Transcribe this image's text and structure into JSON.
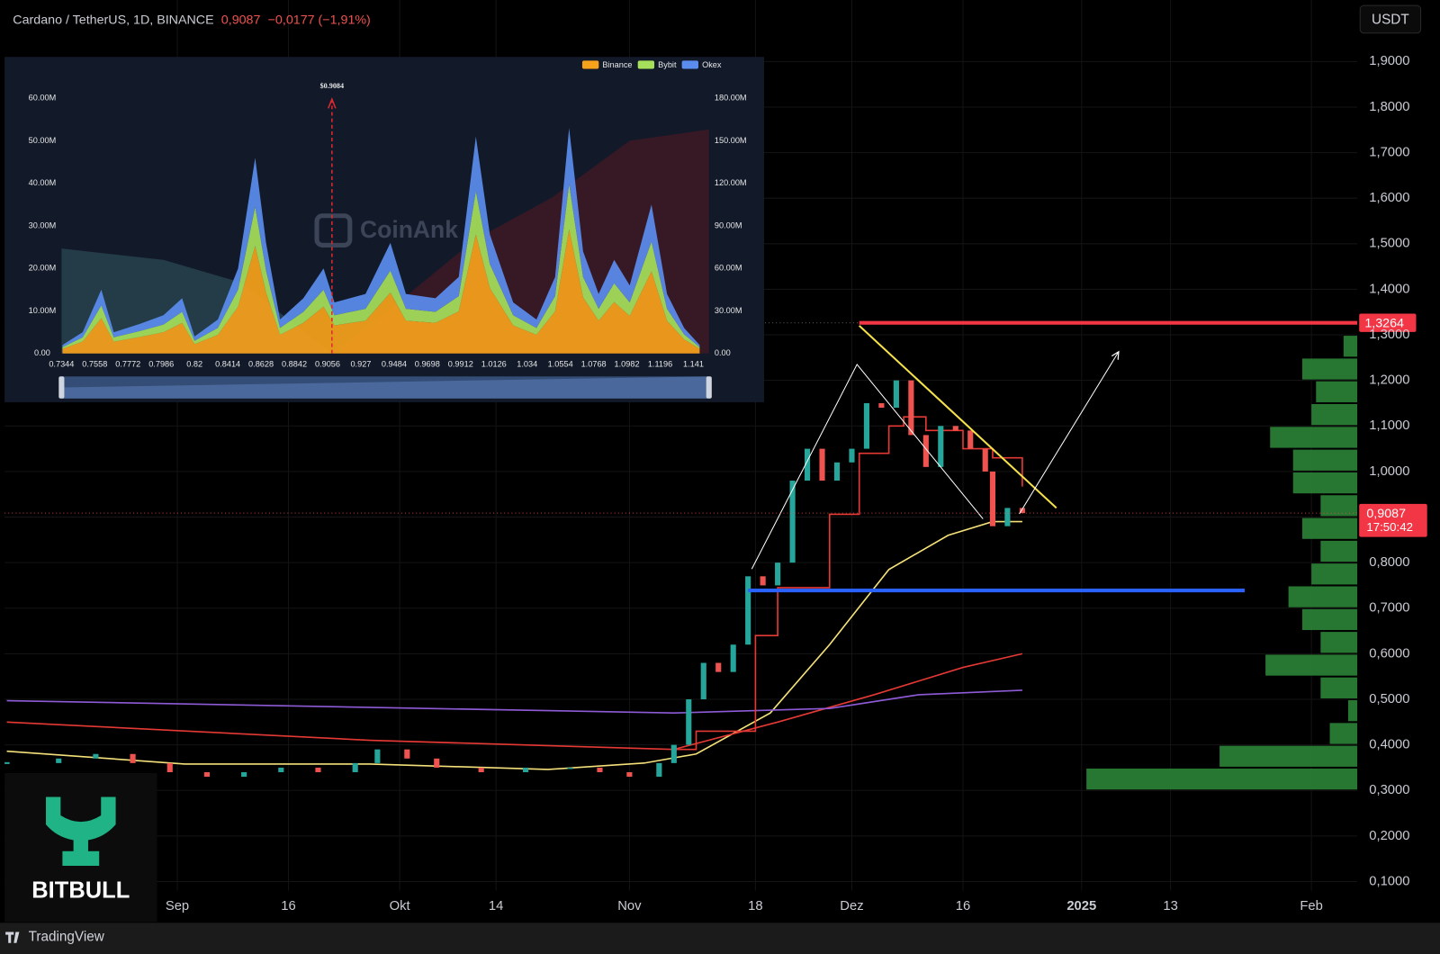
{
  "chart_data": [
    {
      "type": "candlestick",
      "title": "Cardano / TetherUS, 1D, BINANCE",
      "last_price": {
        "value": 0.9087,
        "label": "0,9087"
      },
      "change": "−0,0177 (−1,91%)",
      "countdown": "17:50:42",
      "currency": "USDT",
      "xlim": [
        -22.3,
        160.2
      ],
      "ylim": [
        0.08,
        2.035
      ],
      "xticks": [
        {
          "value": 1,
          "label": "Sep"
        },
        {
          "value": 16,
          "label": "16"
        },
        {
          "value": 31,
          "label": "Okt"
        },
        {
          "value": 44,
          "label": "14"
        },
        {
          "value": 62,
          "label": "Nov"
        },
        {
          "value": 79,
          "label": "18"
        },
        {
          "value": 92,
          "label": "Dez"
        },
        {
          "value": 107,
          "label": "16"
        },
        {
          "value": 123,
          "label": "2025"
        },
        {
          "value": 135,
          "label": "13"
        },
        {
          "value": 154,
          "label": "Feb"
        }
      ],
      "yticks": [
        {
          "value": 0.1,
          "label": "0,1000"
        },
        {
          "value": 0.2,
          "label": "0,2000"
        },
        {
          "value": 0.3,
          "label": "0,3000"
        },
        {
          "value": 0.4,
          "label": "0,4000"
        },
        {
          "value": 0.5,
          "label": "0,5000"
        },
        {
          "value": 0.6,
          "label": "0,6000"
        },
        {
          "value": 0.7,
          "label": "0,7000"
        },
        {
          "value": 0.8,
          "label": "0,8000"
        },
        {
          "value": 0.9,
          "label": "0,9000"
        },
        {
          "value": 1.0,
          "label": "1,0000"
        },
        {
          "value": 1.1,
          "label": "1,1000"
        },
        {
          "value": 1.2,
          "label": "1,2000"
        },
        {
          "value": 1.3,
          "label": "1,3000"
        },
        {
          "value": 1.4,
          "label": "1,4000"
        },
        {
          "value": 1.5,
          "label": "1,5000"
        },
        {
          "value": 1.6,
          "label": "1,6000"
        },
        {
          "value": 1.7,
          "label": "1,7000"
        },
        {
          "value": 1.8,
          "label": "1,8000"
        },
        {
          "value": 1.9,
          "label": "1,9000"
        }
      ],
      "grid": true,
      "up_color": "#26a69a",
      "down_color": "#ef5350",
      "price": {
        "x": [
          -22,
          -15,
          -10,
          -5,
          0,
          5,
          10,
          15,
          20,
          25,
          28,
          32,
          36,
          42,
          48,
          54,
          58,
          62,
          66,
          68,
          70,
          72,
          74,
          76,
          78,
          80,
          82,
          84,
          86,
          88,
          90,
          92,
          94,
          96,
          98,
          100,
          102,
          104,
          106,
          108,
          110,
          111,
          113,
          115
        ],
        "values": [
          0.36,
          0.37,
          0.38,
          0.36,
          0.34,
          0.33,
          0.34,
          0.35,
          0.34,
          0.36,
          0.39,
          0.37,
          0.35,
          0.34,
          0.35,
          0.35,
          0.34,
          0.33,
          0.36,
          0.4,
          0.5,
          0.58,
          0.56,
          0.62,
          0.77,
          0.75,
          0.8,
          0.98,
          1.05,
          0.98,
          1.02,
          1.05,
          1.15,
          1.14,
          1.2,
          1.08,
          1.01,
          1.1,
          1.09,
          1.05,
          1.0,
          0.88,
          0.92,
          0.9087
        ]
      },
      "series": [
        {
          "color": "#f5e17a",
          "x": [
            -22,
            2,
            27,
            51,
            64,
            71,
            81,
            89,
            97,
            105,
            111,
            115
          ],
          "values": [
            0.386,
            0.358,
            0.358,
            0.346,
            0.36,
            0.38,
            0.47,
            0.62,
            0.785,
            0.86,
            0.89,
            0.89
          ]
        },
        {
          "color": "#e53935",
          "x": [
            -22,
            27,
            68,
            82,
            95,
            107,
            115
          ],
          "values": [
            0.45,
            0.41,
            0.39,
            0.45,
            0.51,
            0.57,
            0.6
          ]
        },
        {
          "color": "#8e5bd6",
          "x": [
            -22,
            68,
            89,
            101,
            115
          ],
          "values": [
            0.497,
            0.47,
            0.48,
            0.51,
            0.52
          ]
        },
        {
          "color": "#e53935",
          "step": true,
          "x": [
            68,
            71,
            79,
            82,
            89,
            93,
            97,
            99,
            102,
            107,
            111,
            115
          ],
          "values": [
            0.39,
            0.43,
            0.64,
            0.745,
            0.906,
            1.04,
            1.1,
            1.12,
            1.09,
            1.05,
            1.03,
            0.967
          ]
        }
      ],
      "levels": [
        {
          "value": 1.3264,
          "label": "1,3264",
          "color": "#f23645",
          "x": [
            93,
            160.2
          ]
        },
        {
          "value": 0.739,
          "color": "#2962ff",
          "x": [
            78,
            145
          ]
        }
      ],
      "drawings": [
        {
          "color": "#f5e14a",
          "x": [
            93,
            119.6
          ],
          "values": [
            1.32,
            0.92
          ]
        },
        {
          "color": "#ffffff",
          "x": [
            78.5,
            92.7,
            109.7
          ],
          "values": [
            0.786,
            1.235,
            0.896
          ]
        },
        {
          "color": "#ffffff",
          "arrow": true,
          "x": [
            114.6,
            128
          ],
          "values": [
            0.907,
            1.263
          ]
        }
      ],
      "volume_profile": {
        "color": "#2e8b3a",
        "bin": 0.05,
        "xlim": [
          0,
          300
        ],
        "prices": [
          0.325,
          0.375,
          0.425,
          0.475,
          0.525,
          0.575,
          0.625,
          0.675,
          0.725,
          0.775,
          0.825,
          0.875,
          0.925,
          0.975,
          1.025,
          1.075,
          1.125,
          1.175,
          1.225,
          1.275
        ],
        "volumes": [
          295,
          150,
          30,
          10,
          40,
          100,
          40,
          60,
          75,
          50,
          40,
          60,
          40,
          70,
          70,
          95,
          50,
          45,
          60,
          15
        ]
      },
      "brand": "BITBULL",
      "footer": "TradingView"
    },
    {
      "type": "stacked-area",
      "watermark": "CoinAnk",
      "marker": {
        "value": 0.9084,
        "label": "$0.9084"
      },
      "xlim": [
        0.7344,
        1.151
      ],
      "ylim": [
        0,
        60
      ],
      "y2lim": [
        0,
        180
      ],
      "xticks": [
        0.7344,
        0.7558,
        0.7772,
        0.7986,
        0.82,
        0.8414,
        0.8628,
        0.8842,
        0.9056,
        0.927,
        0.9484,
        0.9698,
        0.9912,
        1.0126,
        1.034,
        1.0554,
        1.0768,
        1.0982,
        1.1196,
        1.141
      ],
      "yticks": [
        {
          "value": 0,
          "label": "0.00"
        },
        {
          "value": 10,
          "label": "10.00M"
        },
        {
          "value": 20,
          "label": "20.00M"
        },
        {
          "value": 30,
          "label": "30.00M"
        },
        {
          "value": 40,
          "label": "40.00M"
        },
        {
          "value": 50,
          "label": "50.00M"
        },
        {
          "value": 60,
          "label": "60.00M"
        }
      ],
      "y2ticks": [
        {
          "value": 0,
          "label": "0.00"
        },
        {
          "value": 30,
          "label": "30.00M"
        },
        {
          "value": 60,
          "label": "60.00M"
        },
        {
          "value": 90,
          "label": "90.00M"
        },
        {
          "value": 120,
          "label": "120.00M"
        },
        {
          "value": 150,
          "label": "150.00M"
        },
        {
          "value": 180,
          "label": "180.00M"
        }
      ],
      "x": [
        0.735,
        0.748,
        0.76,
        0.768,
        0.785,
        0.8,
        0.812,
        0.82,
        0.835,
        0.848,
        0.859,
        0.866,
        0.875,
        0.89,
        0.903,
        0.91,
        0.93,
        0.946,
        0.956,
        0.975,
        0.99,
        1.001,
        1.01,
        1.025,
        1.04,
        1.052,
        1.061,
        1.07,
        1.08,
        1.09,
        1.1,
        1.114,
        1.124,
        1.135,
        1.145
      ],
      "series": [
        {
          "name": "Binance",
          "color": "#f7a21b",
          "values": [
            1.1,
            2.8,
            8.3,
            2.8,
            3.9,
            5,
            7.2,
            2.2,
            4.4,
            11,
            25.3,
            14.3,
            4.4,
            7.2,
            11,
            6.6,
            7.7,
            14.3,
            7.7,
            7.2,
            9.9,
            28,
            15.4,
            6.6,
            4.4,
            9.9,
            29.2,
            13.2,
            7.7,
            12.1,
            8.8,
            19.3,
            7.7,
            3.3,
            1.1
          ]
        },
        {
          "name": "Bybit",
          "color": "#a6e05a",
          "values": [
            0.4,
            1,
            3,
            1,
            1.4,
            1.8,
            2.6,
            0.8,
            1.6,
            4,
            9.2,
            5.2,
            1.6,
            2.6,
            4,
            2.4,
            2.8,
            5.2,
            2.8,
            2.6,
            3.6,
            10.2,
            5.6,
            2.4,
            1.6,
            3.6,
            10.6,
            4.8,
            2.8,
            4.4,
            3.2,
            7,
            2.8,
            1.2,
            0.4
          ]
        },
        {
          "name": "Okex",
          "color": "#5b8def",
          "values": [
            0.5,
            1.2,
            3.7,
            1.2,
            1.7,
            2.2,
            3.2,
            1,
            2,
            5,
            11.5,
            6.5,
            2,
            3.2,
            5,
            3,
            3.5,
            6.5,
            3.5,
            3.2,
            4.5,
            12.8,
            7,
            3,
            2,
            4.5,
            13.2,
            6,
            3.5,
            5.5,
            4,
            8.7,
            3.5,
            1.5,
            0.5
          ]
        }
      ],
      "background": [
        {
          "axis": "y2",
          "color": "#26404b",
          "x": [
            0.7344,
            0.8,
            0.85,
            0.9084
          ],
          "values": [
            74,
            66,
            50,
            0
          ]
        },
        {
          "axis": "y2",
          "color": "#3b1a25",
          "x": [
            0.9084,
            0.95,
            1.0,
            1.05,
            1.1,
            1.151
          ],
          "values": [
            0,
            35,
            80,
            110,
            150,
            158
          ]
        }
      ]
    }
  ]
}
